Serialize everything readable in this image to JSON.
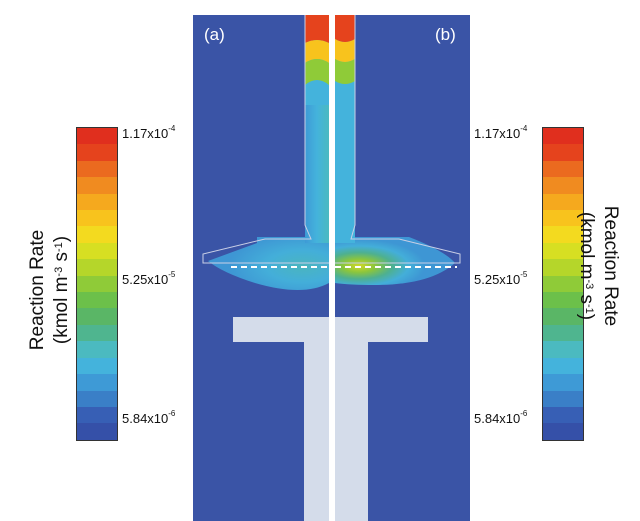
{
  "panels": [
    {
      "label": "(a)"
    },
    {
      "label": "(b)"
    }
  ],
  "colorbar": {
    "max": "1.17x10",
    "max_exp": "-4",
    "mid": "5.25x10",
    "mid_exp": "-5",
    "min": "5.84x10",
    "min_exp": "-6",
    "colors": [
      "#e02f1e",
      "#e5431d",
      "#eb6a1f",
      "#f08b20",
      "#f5a91e",
      "#f8c31d",
      "#f3da1f",
      "#d7df22",
      "#b5d62a",
      "#8fcb38",
      "#6cc04a",
      "#5ab666",
      "#4fb58f",
      "#4bbac0",
      "#44b3dc",
      "#3e9ad6",
      "#3a7fc7",
      "#375fb5",
      "#3550a8"
    ]
  },
  "axis_title": {
    "line1": "Reaction Rate",
    "line2_a": "(kmol m",
    "line2_exp1": "-3",
    "line2_b": " s",
    "line2_exp2": "-1",
    "line2_c": ")"
  },
  "colors": {
    "domain_blue": "#3a54a6",
    "solid_gray": "#d4dcea",
    "divider": "#ffffff"
  }
}
